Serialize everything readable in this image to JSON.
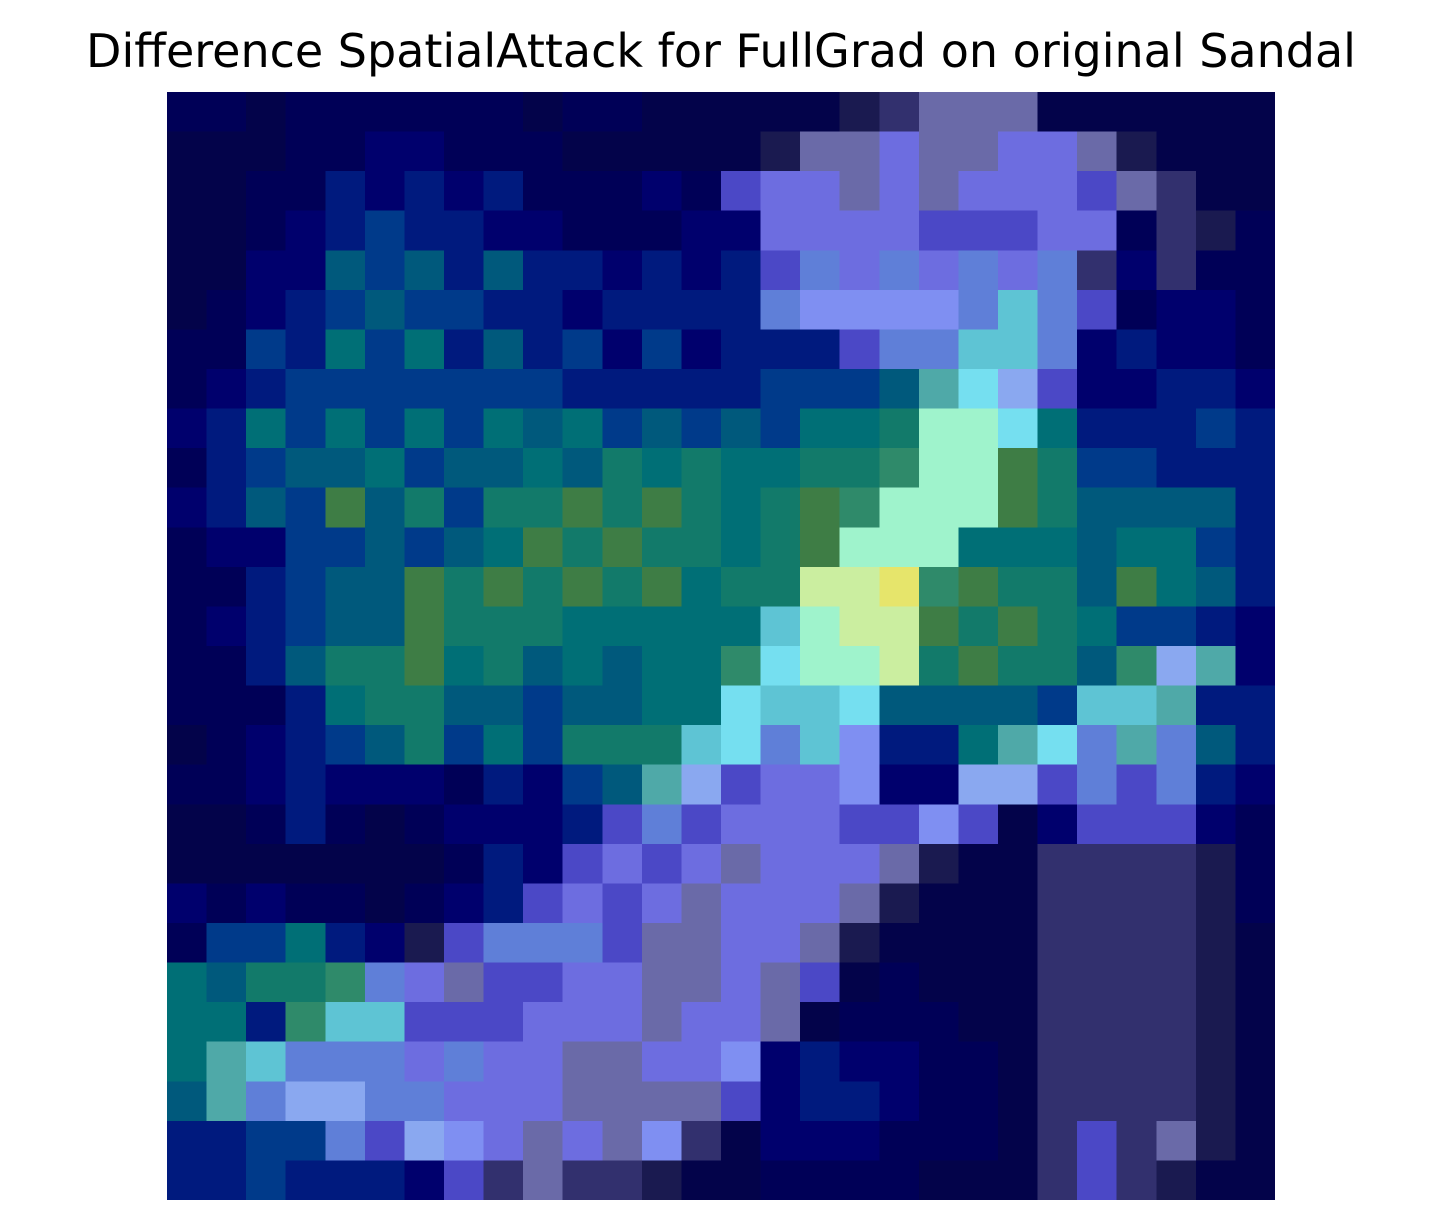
{
  "chart_data": {
    "type": "heatmap",
    "title": "Difference SpatialAttack for FullGrad on original Sandal",
    "xlabel": "",
    "ylabel": "",
    "axes_visible": false,
    "grid": false,
    "rows": 28,
    "cols": 28,
    "palette": [
      "#03034a",
      "#000057",
      "#00006d",
      "#001a7e",
      "#003a8a",
      "#00597c",
      "#006f76",
      "#127a6a",
      "#3e7d45",
      "#2f8a6a",
      "#4fa9a8",
      "#5ec4d4",
      "#75dff0",
      "#9ff3cc",
      "#cbeea0",
      "#e6e56b",
      "#4b48c6",
      "#6d6de0",
      "#7f8ff2",
      "#6a6aa8",
      "#32306e",
      "#1a1a50",
      "#5f7fd8",
      "#8aa8f0"
    ],
    "cells": [
      [
        1,
        1,
        0,
        1,
        1,
        1,
        1,
        1,
        1,
        0,
        1,
        1,
        0,
        0,
        0,
        0,
        0,
        21,
        20,
        19,
        19,
        19,
        0,
        0,
        0,
        0,
        0,
        0
      ],
      [
        0,
        0,
        0,
        1,
        1,
        2,
        2,
        1,
        1,
        1,
        0,
        0,
        0,
        0,
        0,
        21,
        19,
        19,
        17,
        19,
        19,
        17,
        17,
        19,
        21,
        0,
        0,
        0
      ],
      [
        0,
        0,
        1,
        1,
        3,
        2,
        3,
        2,
        3,
        1,
        1,
        1,
        2,
        1,
        16,
        17,
        17,
        19,
        17,
        19,
        17,
        17,
        17,
        16,
        19,
        20,
        0,
        0
      ],
      [
        0,
        0,
        1,
        2,
        3,
        4,
        3,
        3,
        2,
        2,
        1,
        1,
        1,
        2,
        2,
        17,
        17,
        17,
        17,
        16,
        16,
        16,
        17,
        17,
        1,
        20,
        21,
        1
      ],
      [
        0,
        0,
        2,
        2,
        5,
        4,
        5,
        3,
        5,
        3,
        3,
        2,
        3,
        2,
        3,
        16,
        22,
        17,
        22,
        17,
        22,
        17,
        22,
        20,
        2,
        20,
        1,
        1
      ],
      [
        0,
        1,
        2,
        3,
        4,
        5,
        4,
        4,
        3,
        3,
        2,
        3,
        3,
        3,
        3,
        22,
        18,
        18,
        18,
        18,
        22,
        11,
        22,
        16,
        1,
        2,
        2,
        1
      ],
      [
        1,
        1,
        4,
        3,
        6,
        4,
        6,
        3,
        5,
        3,
        4,
        2,
        4,
        2,
        3,
        3,
        3,
        16,
        22,
        22,
        11,
        11,
        22,
        2,
        3,
        2,
        2,
        1
      ],
      [
        1,
        2,
        3,
        4,
        4,
        4,
        4,
        4,
        4,
        4,
        3,
        3,
        3,
        3,
        3,
        4,
        4,
        4,
        5,
        10,
        12,
        23,
        16,
        2,
        2,
        3,
        3,
        2
      ],
      [
        2,
        3,
        6,
        4,
        6,
        4,
        6,
        4,
        6,
        5,
        6,
        4,
        5,
        4,
        5,
        4,
        6,
        6,
        7,
        13,
        13,
        12,
        6,
        3,
        3,
        3,
        4,
        3
      ],
      [
        1,
        3,
        4,
        5,
        5,
        6,
        4,
        5,
        5,
        6,
        5,
        7,
        6,
        7,
        6,
        6,
        7,
        7,
        9,
        13,
        13,
        8,
        7,
        4,
        4,
        3,
        3,
        3
      ],
      [
        2,
        3,
        5,
        4,
        8,
        5,
        7,
        4,
        7,
        7,
        8,
        7,
        8,
        7,
        6,
        7,
        8,
        9,
        13,
        13,
        13,
        8,
        7,
        5,
        5,
        5,
        5,
        3
      ],
      [
        1,
        2,
        2,
        4,
        4,
        5,
        4,
        5,
        6,
        8,
        7,
        8,
        7,
        7,
        6,
        7,
        8,
        13,
        13,
        13,
        6,
        6,
        6,
        5,
        6,
        6,
        4,
        3
      ],
      [
        1,
        1,
        3,
        4,
        5,
        5,
        8,
        7,
        8,
        7,
        8,
        7,
        8,
        6,
        7,
        7,
        14,
        14,
        15,
        9,
        8,
        7,
        7,
        5,
        8,
        6,
        5,
        3
      ],
      [
        1,
        2,
        3,
        4,
        5,
        5,
        8,
        7,
        7,
        7,
        6,
        6,
        6,
        6,
        6,
        11,
        13,
        14,
        14,
        8,
        7,
        8,
        7,
        6,
        4,
        4,
        3,
        2
      ],
      [
        1,
        1,
        3,
        5,
        7,
        7,
        8,
        6,
        7,
        5,
        6,
        5,
        6,
        6,
        9,
        12,
        13,
        13,
        14,
        7,
        8,
        7,
        7,
        5,
        9,
        23,
        10,
        2
      ],
      [
        1,
        1,
        1,
        3,
        6,
        7,
        7,
        5,
        5,
        4,
        5,
        5,
        6,
        6,
        12,
        11,
        11,
        12,
        5,
        5,
        5,
        5,
        4,
        11,
        11,
        10,
        3,
        3
      ],
      [
        0,
        1,
        2,
        3,
        4,
        5,
        7,
        4,
        6,
        4,
        7,
        7,
        7,
        11,
        12,
        22,
        11,
        18,
        3,
        3,
        6,
        10,
        12,
        22,
        10,
        22,
        5,
        3
      ],
      [
        1,
        1,
        2,
        3,
        2,
        2,
        2,
        1,
        3,
        2,
        4,
        5,
        10,
        23,
        16,
        17,
        17,
        18,
        2,
        2,
        23,
        23,
        16,
        22,
        16,
        22,
        3,
        2
      ],
      [
        0,
        0,
        1,
        3,
        1,
        0,
        1,
        2,
        2,
        2,
        3,
        16,
        22,
        16,
        17,
        17,
        17,
        16,
        16,
        18,
        16,
        0,
        2,
        16,
        16,
        16,
        2,
        1
      ],
      [
        0,
        0,
        0,
        0,
        0,
        0,
        0,
        1,
        3,
        2,
        16,
        17,
        16,
        17,
        19,
        17,
        17,
        17,
        19,
        21,
        0,
        0,
        20,
        20,
        20,
        20,
        21,
        1
      ],
      [
        2,
        1,
        2,
        1,
        1,
        0,
        1,
        2,
        3,
        16,
        17,
        16,
        17,
        19,
        17,
        17,
        17,
        19,
        21,
        0,
        0,
        0,
        20,
        20,
        20,
        20,
        21,
        1
      ],
      [
        1,
        4,
        4,
        6,
        3,
        2,
        21,
        16,
        22,
        22,
        22,
        16,
        19,
        19,
        17,
        17,
        19,
        21,
        0,
        0,
        0,
        0,
        20,
        20,
        20,
        20,
        21,
        0
      ],
      [
        6,
        5,
        7,
        7,
        9,
        22,
        17,
        19,
        16,
        16,
        17,
        17,
        19,
        19,
        17,
        19,
        16,
        0,
        1,
        0,
        0,
        0,
        20,
        20,
        20,
        20,
        21,
        0
      ],
      [
        6,
        6,
        3,
        9,
        11,
        11,
        16,
        16,
        16,
        17,
        17,
        17,
        19,
        17,
        17,
        19,
        0,
        1,
        1,
        1,
        0,
        0,
        20,
        20,
        20,
        20,
        21,
        0
      ],
      [
        6,
        10,
        11,
        22,
        22,
        22,
        17,
        22,
        17,
        17,
        19,
        19,
        17,
        17,
        18,
        2,
        3,
        2,
        2,
        1,
        1,
        0,
        20,
        20,
        20,
        20,
        21,
        0
      ],
      [
        5,
        10,
        22,
        23,
        23,
        22,
        22,
        17,
        17,
        17,
        19,
        19,
        19,
        19,
        16,
        2,
        3,
        3,
        2,
        1,
        1,
        0,
        20,
        20,
        20,
        20,
        21,
        0
      ],
      [
        3,
        3,
        4,
        4,
        22,
        16,
        23,
        18,
        17,
        19,
        17,
        19,
        18,
        20,
        0,
        2,
        2,
        2,
        1,
        1,
        1,
        0,
        20,
        16,
        20,
        19,
        21,
        0
      ],
      [
        3,
        3,
        4,
        3,
        3,
        3,
        2,
        16,
        20,
        19,
        20,
        20,
        21,
        0,
        0,
        1,
        1,
        1,
        1,
        0,
        0,
        0,
        20,
        16,
        20,
        21,
        0,
        0
      ]
    ]
  }
}
